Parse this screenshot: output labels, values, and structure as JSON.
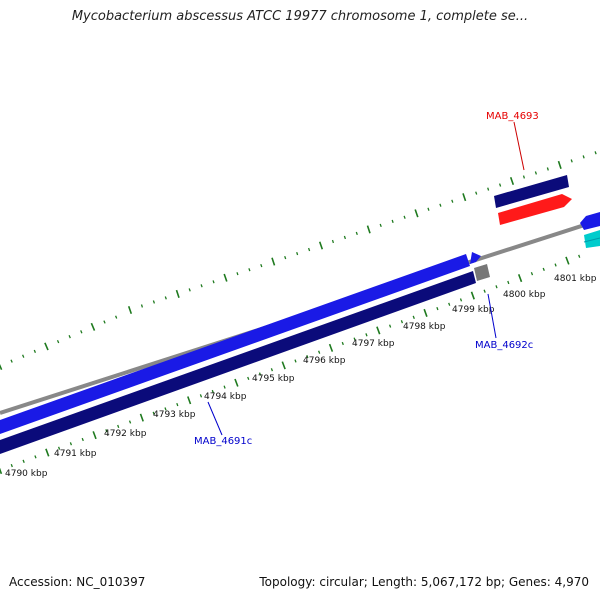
{
  "title": "Mycobacterium abscessus ATCC 19977 chromosome 1, complete se...",
  "footer": {
    "accession": "Accession: NC_010397",
    "summary": "Topology: circular; Length: 5,067,172 bp; Genes: 4,970"
  },
  "scale": {
    "unit": "kbp",
    "tick_labels": [
      "4790 kbp",
      "4791 kbp",
      "4792 kbp",
      "4793 kbp",
      "4794 kbp",
      "4795 kbp",
      "4796 kbp",
      "4797 kbp",
      "4798 kbp",
      "4799 kbp",
      "4800 kbp",
      "4801 kbp"
    ]
  },
  "genes": [
    {
      "name": "MAB_4691c",
      "strand": "minus",
      "color": "#0b0b7a"
    },
    {
      "name": "MAB_4692c",
      "strand": "minus",
      "color": "#0000cc"
    },
    {
      "name": "MAB_4693",
      "strand": "plus",
      "color": "#e60000"
    }
  ],
  "colors": {
    "backbone": "#888888",
    "tick": "#1f7a1f",
    "forward_cds": "#1a1ae6",
    "reverse_cds": "#0b0b7a",
    "highlight_cds": "#ff1a1a",
    "other_feature": "#00cccc"
  }
}
